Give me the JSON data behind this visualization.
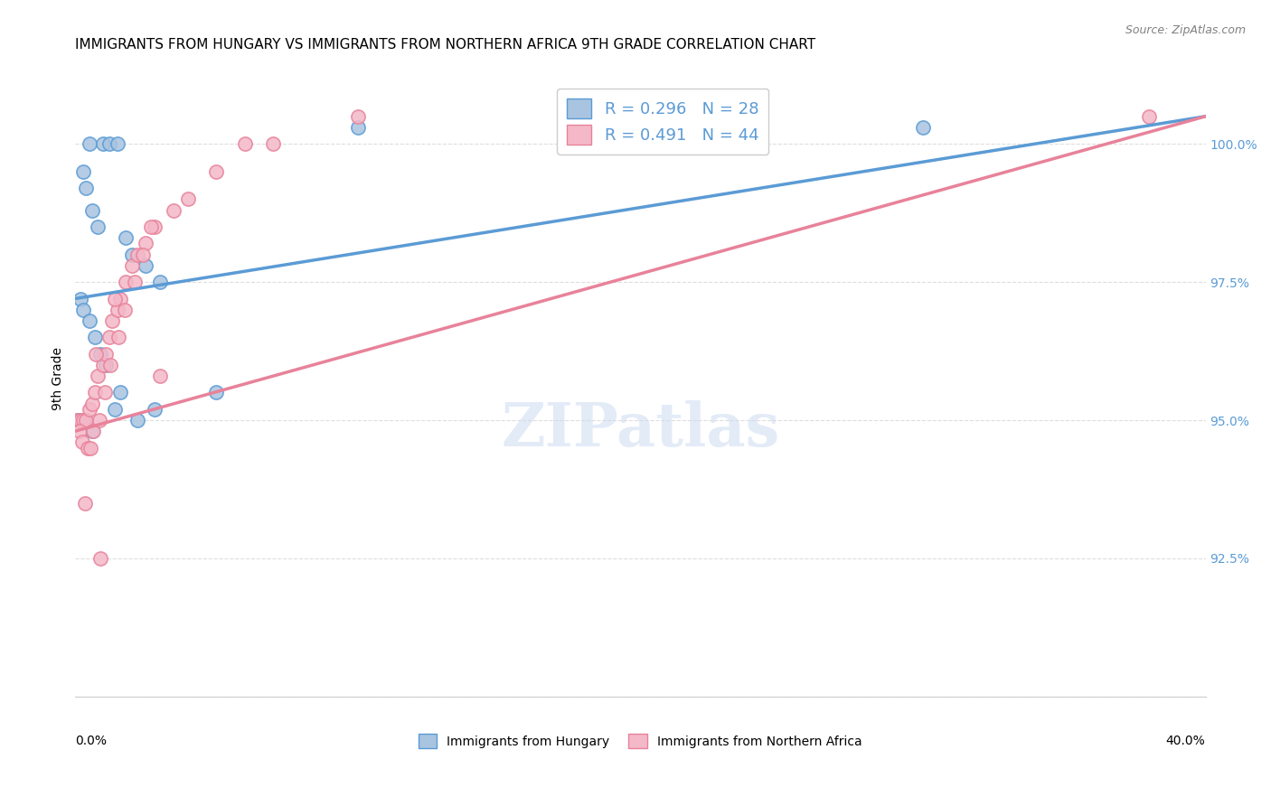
{
  "title": "IMMIGRANTS FROM HUNGARY VS IMMIGRANTS FROM NORTHERN AFRICA 9TH GRADE CORRELATION CHART",
  "source": "Source: ZipAtlas.com",
  "ylabel": "9th Grade",
  "xlabel_left_label": "0.0%",
  "xlabel_right_label": "40.0%",
  "watermark": "ZIPatlas",
  "legend_label_blue": "Immigrants from Hungary",
  "legend_label_pink": "Immigrants from Northern Africa",
  "yticks": [
    90.0,
    92.5,
    95.0,
    97.5,
    100.0
  ],
  "ytick_labels": [
    "",
    "92.5%",
    "95.0%",
    "97.5%",
    "100.0%"
  ],
  "xlim": [
    0.0,
    40.0
  ],
  "ylim": [
    90.0,
    101.5
  ],
  "blue_scatter": {
    "x": [
      0.5,
      1.0,
      1.2,
      1.5,
      0.3,
      0.4,
      0.6,
      0.8,
      1.8,
      2.0,
      2.5,
      3.0,
      0.2,
      0.3,
      0.5,
      0.7,
      0.9,
      1.1,
      1.6,
      2.8,
      0.1,
      0.35,
      0.6,
      1.4,
      2.2,
      10.0,
      30.0,
      5.0
    ],
    "y": [
      100.0,
      100.0,
      100.0,
      100.0,
      99.5,
      99.2,
      98.8,
      98.5,
      98.3,
      98.0,
      97.8,
      97.5,
      97.2,
      97.0,
      96.8,
      96.5,
      96.2,
      96.0,
      95.5,
      95.2,
      95.0,
      95.0,
      94.8,
      95.2,
      95.0,
      100.3,
      100.3,
      95.5
    ]
  },
  "pink_scatter": {
    "x": [
      0.1,
      0.2,
      0.3,
      0.4,
      0.5,
      0.6,
      0.7,
      0.8,
      1.0,
      1.1,
      1.2,
      1.3,
      1.5,
      1.6,
      1.8,
      2.0,
      2.2,
      2.5,
      2.8,
      3.5,
      4.0,
      5.0,
      6.0,
      7.0,
      0.15,
      0.25,
      0.45,
      0.55,
      0.65,
      0.85,
      1.05,
      1.25,
      1.55,
      1.75,
      2.1,
      2.4,
      2.7,
      3.0,
      0.35,
      0.75,
      1.4,
      10.0,
      38.0,
      0.9
    ],
    "y": [
      95.0,
      95.0,
      95.0,
      95.0,
      95.2,
      95.3,
      95.5,
      95.8,
      96.0,
      96.2,
      96.5,
      96.8,
      97.0,
      97.2,
      97.5,
      97.8,
      98.0,
      98.2,
      98.5,
      98.8,
      99.0,
      99.5,
      100.0,
      100.0,
      94.8,
      94.6,
      94.5,
      94.5,
      94.8,
      95.0,
      95.5,
      96.0,
      96.5,
      97.0,
      97.5,
      98.0,
      98.5,
      95.8,
      93.5,
      96.2,
      97.2,
      100.5,
      100.5,
      92.5
    ]
  },
  "blue_line": {
    "x0": 0.0,
    "x1": 40.0,
    "y0": 97.2,
    "y1": 100.5
  },
  "pink_line": {
    "x0": 0.0,
    "x1": 40.0,
    "y0": 94.8,
    "y1": 100.5
  },
  "blue_color": "#5b9bd5",
  "pink_color": "#e8829a",
  "blue_scatter_color": "#a8c4e0",
  "pink_scatter_color": "#f4b8c8",
  "title_fontsize": 11,
  "source_fontsize": 9,
  "ylabel_fontsize": 10,
  "watermark_fontsize": 48,
  "background_color": "#ffffff",
  "grid_color": "#dddddd"
}
